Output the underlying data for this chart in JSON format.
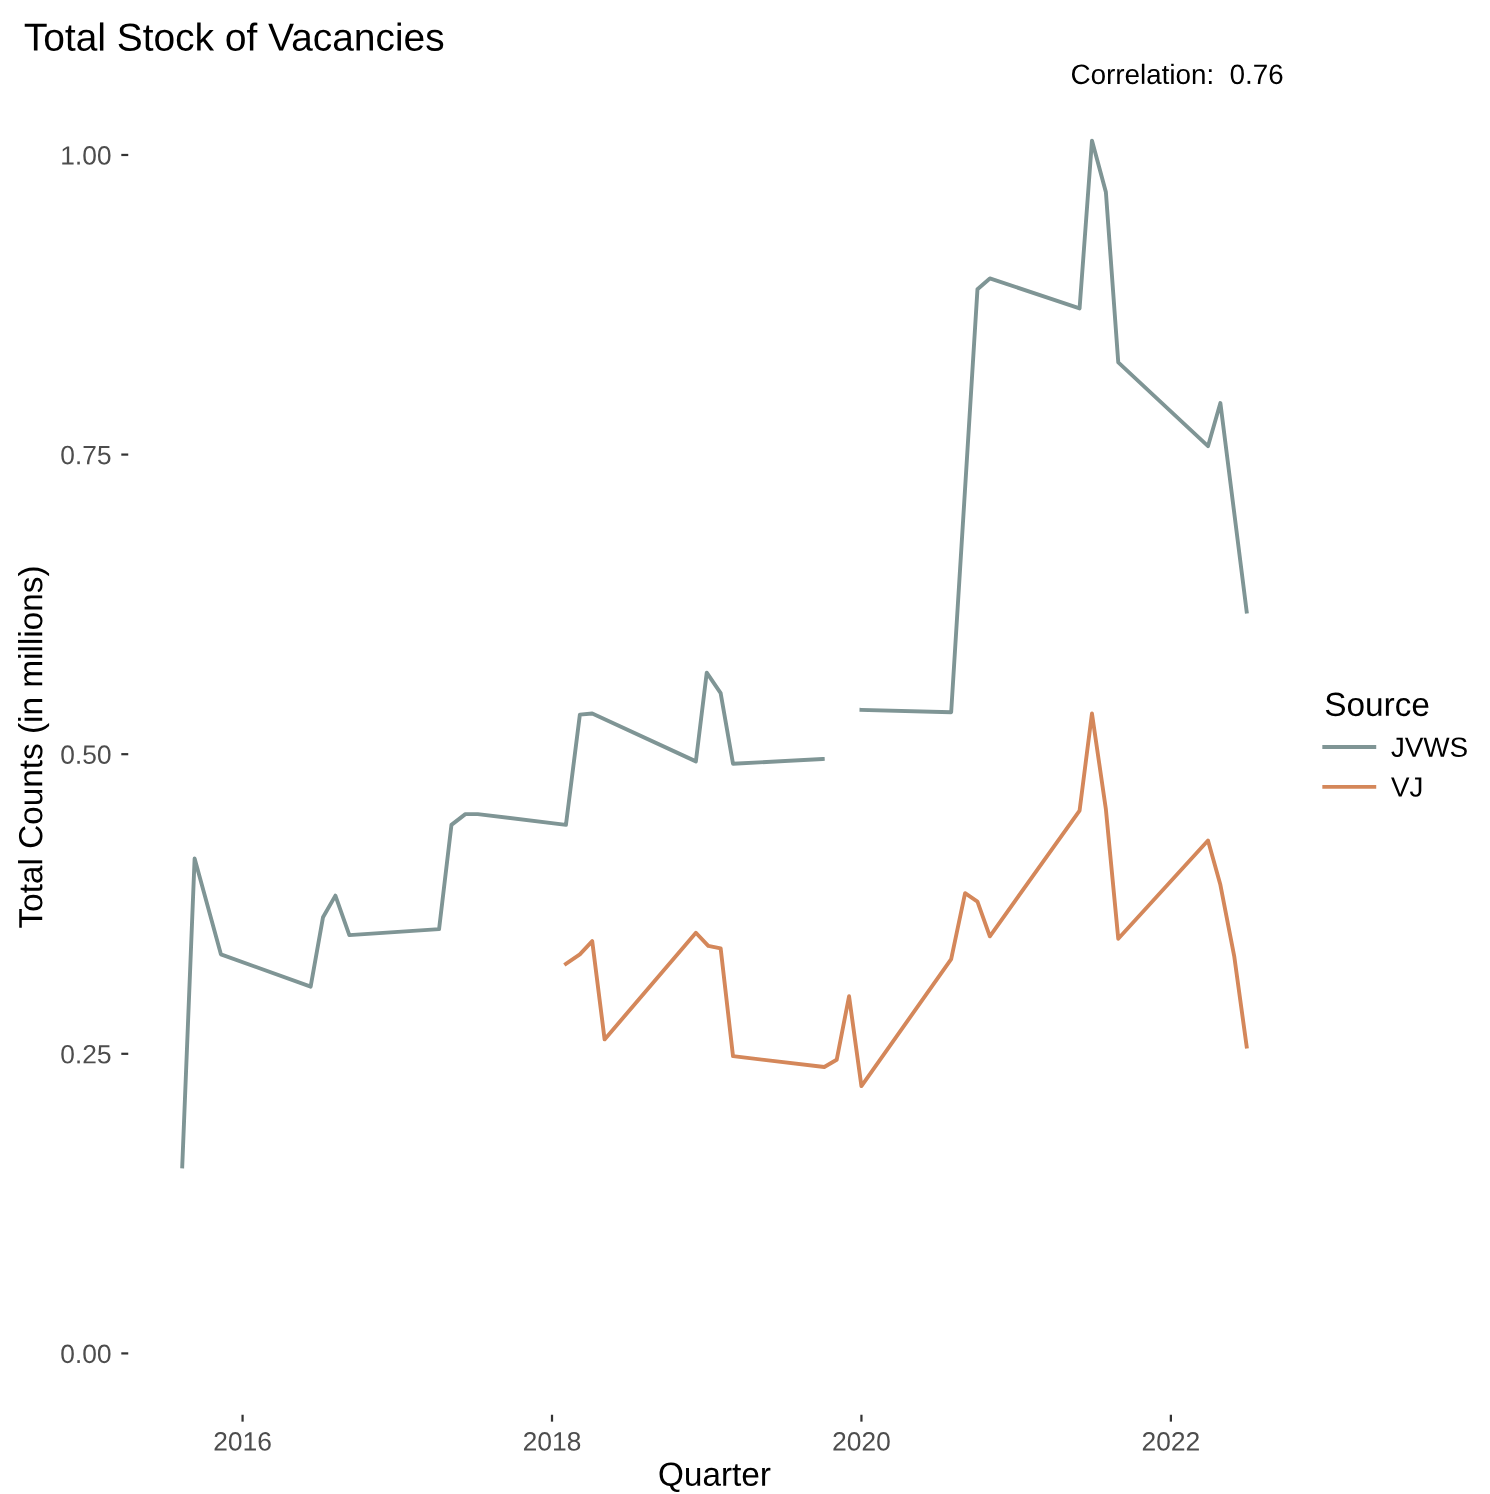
{
  "chart_data": {
    "type": "line",
    "title": "Total Stock of Vacancies",
    "xlabel": "Quarter",
    "ylabel": "Total Counts (in millions)",
    "legend_title": "Source",
    "annotations": [
      "Correlation:  0.76"
    ],
    "xlim": [
      2015.27,
      2022.83
    ],
    "ylim": [
      -0.05,
      1.062
    ],
    "xticks": [
      2016,
      2018,
      2020,
      2022
    ],
    "yticks": [
      {
        "value": 0,
        "label": "0.00"
      },
      {
        "value": 0.25,
        "label": "0.25"
      },
      {
        "value": 0.5,
        "label": "0.50"
      },
      {
        "value": 0.75,
        "label": "0.75"
      },
      {
        "value": 1,
        "label": "1.00"
      }
    ],
    "grid": false,
    "legend": "right",
    "marker": "none",
    "line_style": "solid",
    "series": [
      {
        "name": "JVWS",
        "color": "#7f9595",
        "x": [
          2015.61,
          2015.69,
          2015.86,
          2016.44,
          2016.52,
          2016.6,
          2016.69,
          2017.27,
          2017.35,
          2017.44,
          2017.52,
          2018.09,
          2018.18,
          2018.26,
          2018.93,
          2019.0,
          2019.09,
          2019.17,
          2019.75,
          2019.76,
          2020.0,
          2020.58,
          2020.75,
          2020.83,
          2021.41,
          2021.49,
          2021.58,
          2021.66,
          2022.24,
          2022.32,
          2022.49
        ],
        "values": [
          0.156,
          0.413,
          0.333,
          0.306,
          0.364,
          0.382,
          0.349,
          0.354,
          0.441,
          0.45,
          0.45,
          0.441,
          0.533,
          0.534,
          0.494,
          0.568,
          0.551,
          0.492,
          0.496,
          null,
          0.537,
          0.535,
          0.888,
          0.897,
          0.872,
          1.012,
          0.969,
          0.827,
          0.757,
          0.793,
          0.619
        ]
      },
      {
        "name": "VJ",
        "color": "#d4875a",
        "x": [
          2018.09,
          2018.18,
          2018.26,
          2018.34,
          2018.93,
          2019.01,
          2019.09,
          2019.17,
          2019.76,
          2019.84,
          2019.92,
          2020.0,
          2020.58,
          2020.67,
          2020.75,
          2020.83,
          2021.41,
          2021.49,
          2021.58,
          2021.66,
          2022.24,
          2022.32,
          2022.41,
          2022.49
        ],
        "values": [
          0.325,
          0.333,
          0.344,
          0.262,
          0.351,
          0.34,
          0.338,
          0.248,
          0.239,
          0.245,
          0.298,
          0.223,
          0.329,
          0.384,
          0.377,
          0.348,
          0.453,
          0.534,
          0.454,
          0.346,
          0.428,
          0.391,
          0.331,
          0.256
        ]
      }
    ]
  }
}
